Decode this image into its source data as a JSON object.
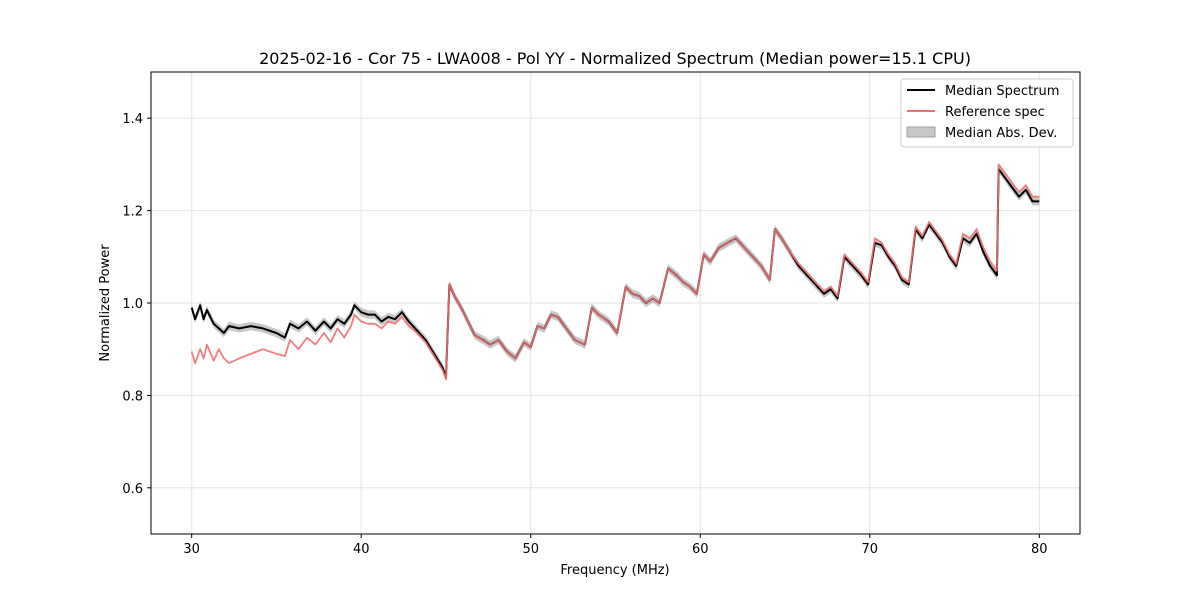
{
  "chart_data": {
    "type": "line",
    "title": "2025-02-16 - Cor 75 - LWA008 - Pol YY - Normalized Spectrum (Median power=15.1 CPU)",
    "xlabel": "Frequency (MHz)",
    "ylabel": "Normalized Power",
    "xlim": [
      27.6,
      82.4
    ],
    "ylim": [
      0.5,
      1.5
    ],
    "xticks": [
      30,
      40,
      50,
      60,
      70,
      80
    ],
    "yticks": [
      0.6,
      0.8,
      1.0,
      1.2,
      1.4
    ],
    "xtick_labels": [
      "30",
      "40",
      "50",
      "60",
      "70",
      "80"
    ],
    "ytick_labels": [
      "0.6",
      "0.8",
      "1.0",
      "1.2",
      "1.4"
    ],
    "grid": true,
    "legend": {
      "position": "top-right",
      "entries": [
        "Median Spectrum",
        "Reference spec",
        "Median Abs. Dev."
      ]
    },
    "x": [
      30.0,
      30.2,
      30.5,
      30.7,
      30.9,
      31.3,
      31.6,
      31.9,
      32.2,
      32.8,
      33.5,
      34.2,
      35.0,
      35.5,
      35.8,
      36.3,
      36.8,
      37.3,
      37.8,
      38.2,
      38.6,
      39.0,
      39.4,
      39.6,
      40.0,
      40.4,
      40.8,
      41.2,
      41.6,
      42.0,
      42.4,
      42.8,
      43.3,
      43.8,
      44.3,
      44.8,
      45.0,
      45.2,
      45.5,
      45.9,
      46.3,
      46.7,
      47.2,
      47.6,
      48.1,
      48.6,
      49.1,
      49.6,
      50.0,
      50.4,
      50.8,
      51.2,
      51.6,
      52.0,
      52.6,
      53.2,
      53.6,
      54.0,
      54.6,
      55.1,
      55.6,
      56.0,
      56.4,
      56.8,
      57.2,
      57.6,
      58.1,
      58.6,
      59.0,
      59.4,
      59.8,
      60.2,
      60.6,
      61.1,
      61.6,
      62.1,
      62.6,
      63.1,
      63.6,
      64.1,
      64.4,
      64.8,
      65.3,
      65.8,
      66.3,
      66.8,
      67.3,
      67.7,
      68.1,
      68.5,
      69.0,
      69.5,
      69.9,
      70.3,
      70.7,
      71.1,
      71.5,
      71.9,
      72.3,
      72.7,
      73.1,
      73.5,
      73.9,
      74.3,
      74.7,
      75.1,
      75.5,
      75.9,
      76.3,
      76.7,
      77.1,
      77.5,
      77.6,
      78.0,
      78.4,
      78.8,
      79.2,
      79.6,
      80.0
    ],
    "series": [
      {
        "name": "Median Spectrum",
        "color": "#000000",
        "values": [
          0.99,
          0.965,
          0.995,
          0.965,
          0.985,
          0.955,
          0.945,
          0.935,
          0.95,
          0.945,
          0.95,
          0.945,
          0.935,
          0.925,
          0.955,
          0.945,
          0.96,
          0.94,
          0.96,
          0.945,
          0.965,
          0.955,
          0.975,
          0.995,
          0.98,
          0.975,
          0.975,
          0.96,
          0.97,
          0.965,
          0.98,
          0.96,
          0.94,
          0.92,
          0.89,
          0.86,
          0.84,
          1.04,
          1.015,
          0.99,
          0.96,
          0.93,
          0.92,
          0.91,
          0.92,
          0.895,
          0.88,
          0.915,
          0.905,
          0.95,
          0.945,
          0.975,
          0.97,
          0.95,
          0.92,
          0.91,
          0.99,
          0.975,
          0.96,
          0.935,
          1.035,
          1.02,
          1.015,
          1.0,
          1.01,
          1.0,
          1.075,
          1.06,
          1.045,
          1.035,
          1.02,
          1.105,
          1.09,
          1.12,
          1.13,
          1.14,
          1.12,
          1.1,
          1.08,
          1.05,
          1.16,
          1.14,
          1.11,
          1.08,
          1.06,
          1.04,
          1.02,
          1.03,
          1.01,
          1.1,
          1.08,
          1.06,
          1.04,
          1.13,
          1.125,
          1.1,
          1.08,
          1.05,
          1.04,
          1.16,
          1.14,
          1.17,
          1.15,
          1.13,
          1.1,
          1.08,
          1.14,
          1.13,
          1.15,
          1.11,
          1.08,
          1.06,
          1.29,
          1.27,
          1.25,
          1.23,
          1.245,
          1.22,
          1.22
        ]
      },
      {
        "name": "Reference spec",
        "color": "#f07070",
        "values": [
          0.895,
          0.87,
          0.9,
          0.88,
          0.91,
          0.875,
          0.9,
          0.88,
          0.87,
          0.88,
          0.89,
          0.9,
          0.89,
          0.885,
          0.92,
          0.9,
          0.925,
          0.91,
          0.935,
          0.915,
          0.945,
          0.925,
          0.95,
          0.975,
          0.96,
          0.955,
          0.955,
          0.945,
          0.96,
          0.955,
          0.97,
          0.95,
          0.935,
          0.915,
          0.885,
          0.855,
          0.835,
          1.04,
          1.015,
          0.99,
          0.96,
          0.93,
          0.92,
          0.91,
          0.92,
          0.895,
          0.88,
          0.915,
          0.905,
          0.95,
          0.945,
          0.975,
          0.97,
          0.95,
          0.92,
          0.91,
          0.99,
          0.975,
          0.96,
          0.935,
          1.035,
          1.02,
          1.015,
          1.0,
          1.01,
          1.0,
          1.075,
          1.06,
          1.045,
          1.035,
          1.02,
          1.105,
          1.09,
          1.12,
          1.13,
          1.14,
          1.12,
          1.1,
          1.08,
          1.05,
          1.16,
          1.14,
          1.11,
          1.085,
          1.065,
          1.045,
          1.025,
          1.035,
          1.015,
          1.105,
          1.085,
          1.065,
          1.045,
          1.14,
          1.13,
          1.105,
          1.085,
          1.055,
          1.045,
          1.165,
          1.145,
          1.175,
          1.155,
          1.135,
          1.105,
          1.085,
          1.15,
          1.14,
          1.16,
          1.12,
          1.09,
          1.07,
          1.3,
          1.28,
          1.26,
          1.24,
          1.255,
          1.23,
          1.23
        ]
      }
    ],
    "mad_band": {
      "name": "Median Abs. Dev.",
      "color": "#b0b0b0",
      "halfwidth": 0.009
    }
  }
}
